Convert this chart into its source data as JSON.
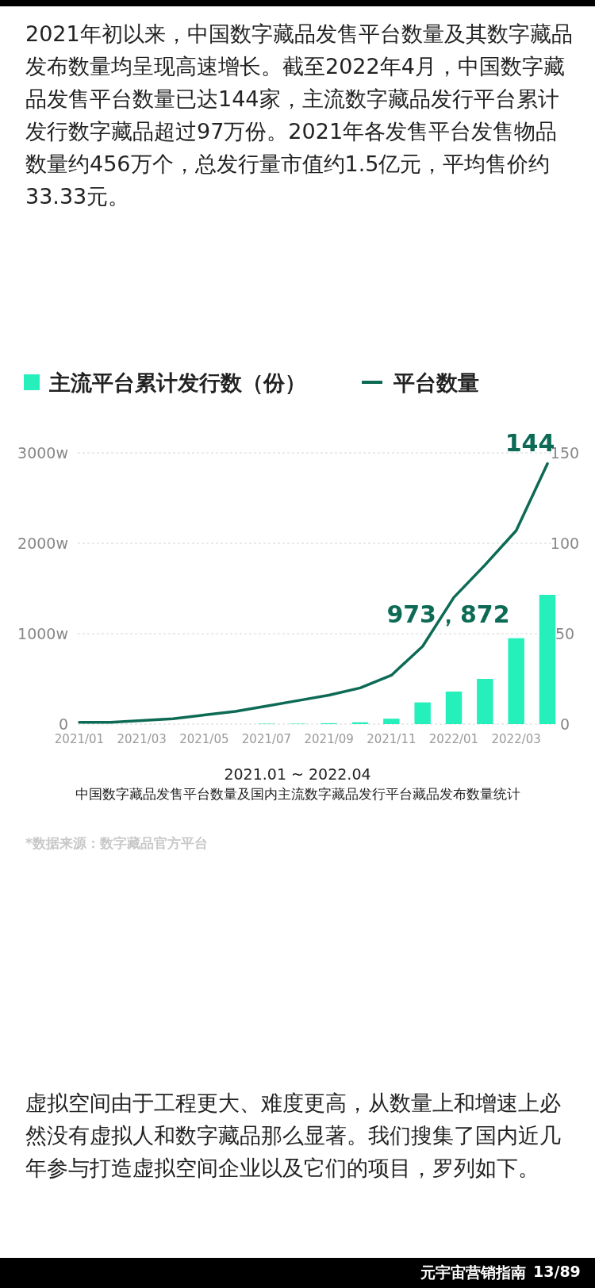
{
  "chart_data": {
    "type": "bar",
    "title": "中国数字藏品发售平台数量及国内主流数字藏品发行平台藏品发布数量统计",
    "xlabel": "2021.01 ~ 2022.04",
    "categories": [
      "2021/01",
      null,
      "2021/03",
      null,
      "2021/05",
      null,
      "2021/07",
      null,
      "2021/09",
      null,
      "2021/11",
      null,
      "2022/01",
      null,
      "2022/03",
      null
    ],
    "series": [
      {
        "name": "主流平台累计发行数（份）",
        "color": "#25efbb",
        "values": [
          null,
          null,
          null,
          null,
          null,
          null,
          5,
          5,
          10,
          20,
          60,
          240,
          360,
          500,
          950,
          1430
        ]
      },
      {
        "name": "平台数量",
        "type": "line",
        "axis": "y2",
        "color": "#0c6a55",
        "values": [
          1,
          1,
          2,
          3,
          5,
          7,
          10,
          13,
          16,
          20,
          27,
          43,
          70,
          88,
          107,
          144
        ],
        "value_labels": [
          null,
          null,
          null,
          null,
          null,
          null,
          null,
          null,
          null,
          null,
          null,
          null,
          null,
          null,
          null,
          "144"
        ]
      }
    ],
    "ylim": [
      0,
      3000
    ],
    "yticks": [
      0,
      {
        "value": 1000,
        "label": "1000w"
      },
      {
        "value": 2000,
        "label": "2000w"
      },
      {
        "value": 3000,
        "label": "3000w"
      }
    ],
    "y2lim": [
      0,
      150
    ],
    "y2ticks": [
      0,
      50,
      100,
      150
    ],
    "grid": "y",
    "legend": "top",
    "annotations": [
      "2021年初以来，中国数字藏品发售平台数量及其数字藏品发布数量均呈现高速增长。截至2022年4月，中国数字藏品发售平台数量已达144家，主流数字藏品发行平台累计发行数字藏品超过97万份。2021年各发售平台发售物品数量约456万个，总发行量市值约1.5亿元，平均售价约33.33元。",
      "*数据来源：数字藏品官方平台",
      "虚拟空间由于工程更大、难度更高，从数量上和增速上必然没有虚拟人和数字藏品那么显著。我们搜集了国内近几年参与打造虚拟空间企业以及它们的项目，罗列如下。",
      "元宇宙营销指南",
      "13/89",
      "973，872"
    ]
  }
}
